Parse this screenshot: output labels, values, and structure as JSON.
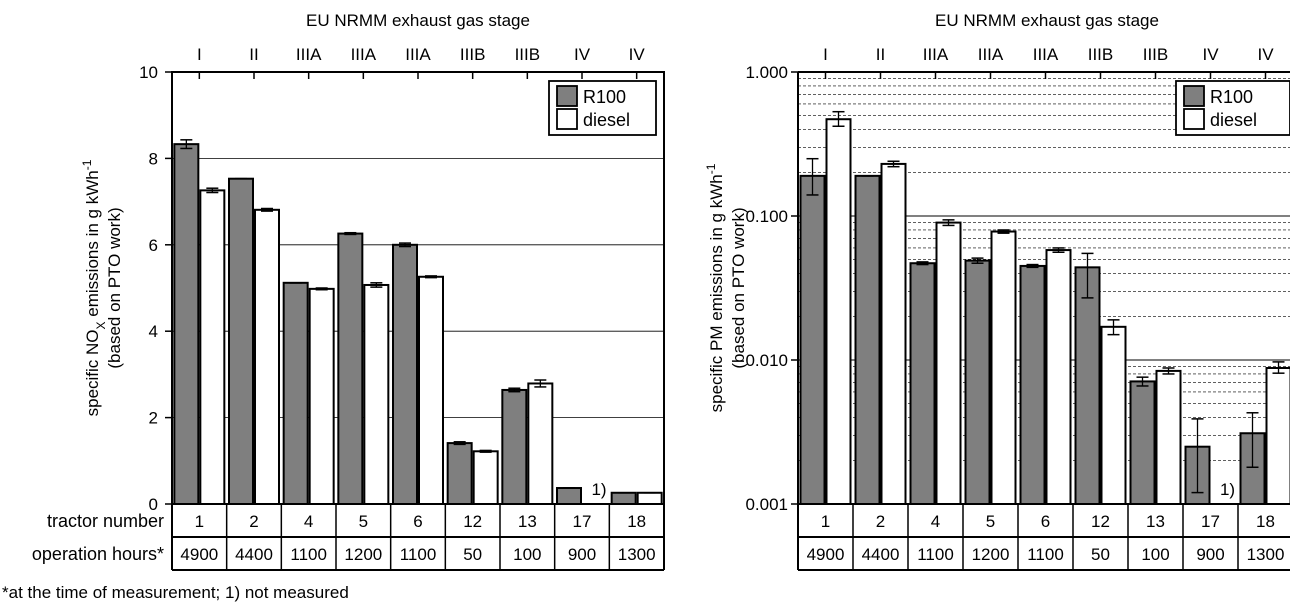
{
  "chart_data": [
    {
      "type": "bar",
      "title": "EU NRMM exhaust gas stage",
      "stages": [
        "I",
        "II",
        "IIIA",
        "IIIA",
        "IIIA",
        "IIIB",
        "IIIB",
        "IV",
        "IV"
      ],
      "ylabel": "specific NOX emissions in g kWh-1",
      "ylabel_main": "specific NO",
      "ylabel_sub": "X",
      "ylabel_after": " emissions in g kWh",
      "ylabel_sup": "-1",
      "ylabel2": "(based on PTO work)",
      "ylim": [
        0,
        10
      ],
      "yscale": "linear",
      "yticks": [
        0,
        2,
        4,
        6,
        8,
        10
      ],
      "ytick_labels": [
        "0",
        "2",
        "4",
        "6",
        "8",
        "10"
      ],
      "gridlines": [
        2,
        4,
        6,
        8
      ],
      "row1_label": "tractor number",
      "row2_label": "operation hours*",
      "tractor_numbers": [
        "1",
        "2",
        "4",
        "5",
        "6",
        "12",
        "13",
        "17",
        "18"
      ],
      "operation_hours": [
        "4900",
        "4400",
        "1100",
        "1200",
        "1100",
        "50",
        "100",
        "900",
        "1300"
      ],
      "legend_position": "top-right",
      "series": [
        {
          "name": "R100",
          "color": "#7f7f7f",
          "values": [
            8.33,
            7.53,
            5.12,
            6.26,
            6.0,
            1.41,
            2.64,
            0.37,
            0.26
          ],
          "errors": [
            0.1,
            0.0,
            0.0,
            0.02,
            0.04,
            0.03,
            0.04,
            0.0,
            0.0
          ]
        },
        {
          "name": "diesel",
          "color": "#ffffff",
          "values": [
            7.26,
            6.81,
            4.98,
            5.07,
            5.26,
            1.22,
            2.79,
            null,
            0.26
          ],
          "errors": [
            0.05,
            0.03,
            0.02,
            0.05,
            0.02,
            0.02,
            0.08,
            null,
            0.0
          ]
        }
      ],
      "annotation": {
        "text": "1)",
        "category_index": 7
      }
    },
    {
      "type": "bar",
      "title": "EU NRMM exhaust gas stage",
      "stages": [
        "I",
        "II",
        "IIIA",
        "IIIA",
        "IIIA",
        "IIIB",
        "IIIB",
        "IV",
        "IV"
      ],
      "ylabel": "specific PM emissions in g kWh-1",
      "ylabel_main": "specific PM emissions in g kWh",
      "ylabel_sup": "-1",
      "ylabel2": "(based on PTO work)",
      "ylim": [
        0.001,
        1.0
      ],
      "yscale": "log",
      "yticks": [
        0.001,
        0.01,
        0.1,
        1.0
      ],
      "ytick_labels": [
        "0.001",
        "0.010",
        "0.100",
        "1.000"
      ],
      "tractor_numbers": [
        "1",
        "2",
        "4",
        "5",
        "6",
        "12",
        "13",
        "17",
        "18"
      ],
      "operation_hours": [
        "4900",
        "4400",
        "1100",
        "1200",
        "1100",
        "50",
        "100",
        "900",
        "1300"
      ],
      "legend_position": "top-right",
      "series": [
        {
          "name": "R100",
          "color": "#7f7f7f",
          "values": [
            0.19,
            0.19,
            0.047,
            0.049,
            0.045,
            0.044,
            0.0071,
            0.0025,
            0.0031
          ],
          "err_low": [
            0.14,
            0.19,
            0.046,
            0.047,
            0.044,
            0.027,
            0.0066,
            0.0012,
            0.0018
          ],
          "err_high": [
            0.25,
            0.19,
            0.048,
            0.051,
            0.046,
            0.055,
            0.0076,
            0.0039,
            0.0043
          ]
        },
        {
          "name": "diesel",
          "color": "#ffffff",
          "values": [
            0.47,
            0.23,
            0.09,
            0.078,
            0.058,
            0.017,
            0.0084,
            null,
            0.0088
          ],
          "err_low": [
            0.42,
            0.22,
            0.086,
            0.076,
            0.056,
            0.015,
            0.008,
            null,
            0.0081
          ],
          "err_high": [
            0.53,
            0.24,
            0.094,
            0.08,
            0.06,
            0.019,
            0.0088,
            null,
            0.0097
          ]
        }
      ],
      "annotation": {
        "text": "1)",
        "category_index": 7
      }
    }
  ],
  "footnote": "*at the time of measurement; 1) not measured"
}
